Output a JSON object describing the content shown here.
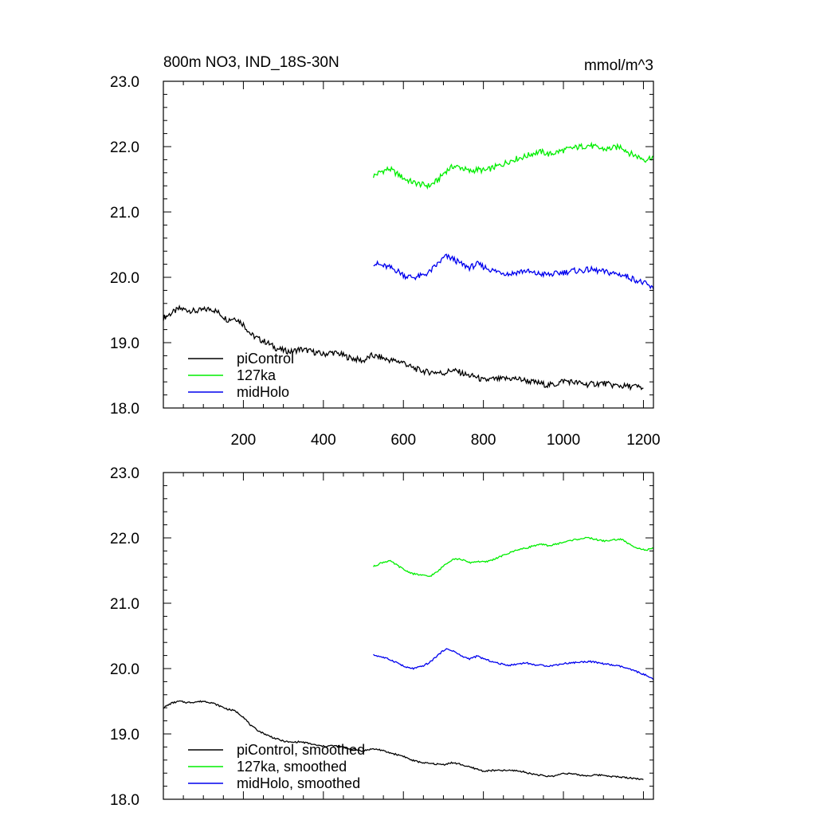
{
  "figure": {
    "title": "800m NO3, IND_18S-30N",
    "units": "mmol/m^3"
  },
  "chart_data": [
    {
      "type": "line",
      "title": "800m NO3, IND_18S-30N",
      "units_label": "mmol/m^3",
      "xlabel": "",
      "ylabel": "",
      "xlim": [
        0,
        1225
      ],
      "ylim": [
        18.0,
        23.0
      ],
      "y_ticks": [
        "18.0",
        "19.0",
        "20.0",
        "21.0",
        "22.0",
        "23.0"
      ],
      "x_ticks": [
        "200",
        "400",
        "600",
        "800",
        "1000",
        "1200"
      ],
      "x_tick_values": [
        200,
        400,
        600,
        800,
        1000,
        1200
      ],
      "grid": false,
      "legend_position": "bottom-left",
      "series": [
        {
          "name": "piControl",
          "color": "#000000",
          "x": [
            0,
            20,
            40,
            60,
            80,
            100,
            120,
            140,
            160,
            180,
            200,
            220,
            240,
            260,
            280,
            300,
            320,
            340,
            360,
            380,
            400,
            420,
            440,
            460,
            480,
            500,
            520,
            540,
            560,
            580,
            600,
            620,
            640,
            660,
            680,
            700,
            720,
            740,
            760,
            780,
            800,
            820,
            840,
            860,
            880,
            900,
            920,
            940,
            960,
            980,
            1000,
            1020,
            1040,
            1060,
            1080,
            1100,
            1120,
            1140,
            1160,
            1180,
            1200
          ],
          "y": [
            19.38,
            19.45,
            19.52,
            19.5,
            19.48,
            19.5,
            19.52,
            19.45,
            19.35,
            19.38,
            19.28,
            19.12,
            19.05,
            19.0,
            18.92,
            18.88,
            18.86,
            18.9,
            18.88,
            18.85,
            18.82,
            18.85,
            18.83,
            18.78,
            18.75,
            18.72,
            18.8,
            18.78,
            18.74,
            18.72,
            18.7,
            18.62,
            18.58,
            18.55,
            18.55,
            18.53,
            18.58,
            18.55,
            18.5,
            18.48,
            18.42,
            18.44,
            18.44,
            18.45,
            18.45,
            18.43,
            18.4,
            18.38,
            18.35,
            18.36,
            18.42,
            18.4,
            18.38,
            18.36,
            18.37,
            18.38,
            18.35,
            18.34,
            18.33,
            18.33,
            18.3
          ]
        },
        {
          "name": "127ka",
          "color": "#00ee00",
          "x": [
            525,
            545,
            565,
            585,
            605,
            625,
            645,
            665,
            685,
            705,
            725,
            745,
            765,
            785,
            805,
            825,
            845,
            865,
            885,
            905,
            925,
            945,
            965,
            985,
            1005,
            1025,
            1045,
            1065,
            1085,
            1105,
            1125,
            1145,
            1165,
            1185,
            1205,
            1225
          ],
          "y": [
            21.55,
            21.62,
            21.66,
            21.58,
            21.5,
            21.45,
            21.42,
            21.4,
            21.48,
            21.62,
            21.7,
            21.68,
            21.62,
            21.65,
            21.63,
            21.68,
            21.72,
            21.78,
            21.82,
            21.85,
            21.9,
            21.92,
            21.88,
            21.92,
            21.95,
            21.98,
            22.0,
            22.02,
            21.98,
            21.96,
            21.98,
            22.0,
            21.9,
            21.85,
            21.8,
            21.85
          ]
        },
        {
          "name": "midHolo",
          "color": "#0000ee",
          "x": [
            525,
            545,
            565,
            585,
            605,
            625,
            645,
            665,
            685,
            705,
            725,
            745,
            765,
            785,
            805,
            825,
            845,
            865,
            885,
            905,
            925,
            945,
            965,
            985,
            1005,
            1025,
            1045,
            1065,
            1085,
            1105,
            1125,
            1145,
            1165,
            1185,
            1205,
            1225
          ],
          "y": [
            20.22,
            20.18,
            20.15,
            20.1,
            20.02,
            20.0,
            20.02,
            20.08,
            20.2,
            20.32,
            20.28,
            20.2,
            20.15,
            20.2,
            20.15,
            20.1,
            20.08,
            20.05,
            20.08,
            20.1,
            20.06,
            20.05,
            20.04,
            20.06,
            20.08,
            20.1,
            20.1,
            20.12,
            20.1,
            20.08,
            20.06,
            20.04,
            20.0,
            19.95,
            19.9,
            19.82
          ]
        }
      ]
    },
    {
      "type": "line",
      "title": "",
      "xlabel": "",
      "ylabel": "",
      "xlim": [
        0,
        1225
      ],
      "ylim": [
        18.0,
        23.0
      ],
      "y_ticks": [
        "18.0",
        "19.0",
        "20.0",
        "21.0",
        "22.0",
        "23.0"
      ],
      "x_tick_values": [
        200,
        400,
        600,
        800,
        1000,
        1200
      ],
      "grid": false,
      "legend_position": "bottom-left",
      "series": [
        {
          "name": "piControl, smoothed",
          "color": "#000000",
          "x": [
            0,
            20,
            40,
            60,
            80,
            100,
            120,
            140,
            160,
            180,
            200,
            220,
            240,
            260,
            280,
            300,
            320,
            340,
            360,
            380,
            400,
            420,
            440,
            460,
            480,
            500,
            520,
            540,
            560,
            580,
            600,
            620,
            640,
            660,
            680,
            700,
            720,
            740,
            760,
            780,
            800,
            820,
            840,
            860,
            880,
            900,
            920,
            940,
            960,
            980,
            1000,
            1020,
            1040,
            1060,
            1080,
            1100,
            1120,
            1140,
            1160,
            1180,
            1200
          ],
          "y": [
            19.4,
            19.47,
            19.5,
            19.48,
            19.49,
            19.5,
            19.48,
            19.43,
            19.38,
            19.35,
            19.26,
            19.12,
            19.04,
            18.98,
            18.93,
            18.89,
            18.87,
            18.88,
            18.86,
            18.83,
            18.81,
            18.82,
            18.81,
            18.78,
            18.76,
            18.74,
            18.77,
            18.76,
            18.72,
            18.69,
            18.66,
            18.6,
            18.57,
            18.55,
            18.54,
            18.53,
            18.56,
            18.54,
            18.5,
            18.47,
            18.43,
            18.44,
            18.44,
            18.44,
            18.44,
            18.42,
            18.39,
            18.37,
            18.35,
            18.36,
            18.4,
            18.39,
            18.37,
            18.36,
            18.37,
            18.37,
            18.35,
            18.34,
            18.33,
            18.32,
            18.3
          ]
        },
        {
          "name": "127ka, smoothed",
          "color": "#00ee00",
          "x": [
            525,
            545,
            565,
            585,
            605,
            625,
            645,
            665,
            685,
            705,
            725,
            745,
            765,
            785,
            805,
            825,
            845,
            865,
            885,
            905,
            925,
            945,
            965,
            985,
            1005,
            1025,
            1045,
            1065,
            1085,
            1105,
            1125,
            1145,
            1165,
            1185,
            1205,
            1225
          ],
          "y": [
            21.56,
            21.62,
            21.65,
            21.58,
            21.5,
            21.45,
            21.43,
            21.41,
            21.48,
            21.6,
            21.68,
            21.67,
            21.62,
            21.64,
            21.63,
            21.67,
            21.72,
            21.77,
            21.82,
            21.84,
            21.88,
            21.9,
            21.88,
            21.91,
            21.94,
            21.97,
            21.99,
            22.0,
            21.97,
            21.95,
            21.97,
            21.98,
            21.9,
            21.85,
            21.81,
            21.84
          ]
        },
        {
          "name": "midHolo, smoothed",
          "color": "#0000ee",
          "x": [
            525,
            545,
            565,
            585,
            605,
            625,
            645,
            665,
            685,
            705,
            725,
            745,
            765,
            785,
            805,
            825,
            845,
            865,
            885,
            905,
            925,
            945,
            965,
            985,
            1005,
            1025,
            1045,
            1065,
            1085,
            1105,
            1125,
            1145,
            1165,
            1185,
            1205,
            1225
          ],
          "y": [
            20.21,
            20.18,
            20.14,
            20.09,
            20.02,
            20.0,
            20.03,
            20.09,
            20.2,
            20.3,
            20.27,
            20.19,
            20.15,
            20.19,
            20.14,
            20.1,
            20.07,
            20.05,
            20.07,
            20.09,
            20.06,
            20.05,
            20.04,
            20.06,
            20.08,
            20.09,
            20.1,
            20.11,
            20.09,
            20.07,
            20.05,
            20.03,
            19.99,
            19.95,
            19.9,
            19.83
          ]
        }
      ]
    }
  ]
}
